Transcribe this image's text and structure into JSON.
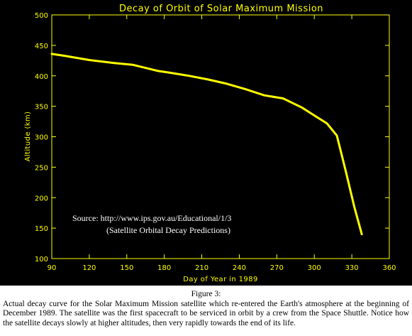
{
  "chart_data": {
    "type": "line",
    "title": "Decay of Orbit of Solar Maximum Mission",
    "xlabel": "Day of Year in 1989",
    "ylabel": "Altitude (km)",
    "xlim": [
      90,
      360
    ],
    "ylim": [
      100,
      500
    ],
    "xticks": [
      90,
      120,
      150,
      180,
      210,
      240,
      270,
      300,
      330,
      360
    ],
    "yticks": [
      100,
      150,
      200,
      250,
      300,
      350,
      400,
      450,
      500
    ],
    "grid": false,
    "background": "#000000",
    "axis_color": "#ffff00",
    "series_color": "#ffff00",
    "series": [
      {
        "x": [
          90,
          100,
          120,
          140,
          155,
          165,
          175,
          185,
          200,
          215,
          230,
          245,
          260,
          275,
          290,
          300,
          310,
          318,
          325,
          332,
          338
        ],
        "y": [
          436,
          433,
          426,
          421,
          418,
          413,
          408,
          405,
          400,
          394,
          387,
          378,
          368,
          363,
          348,
          335,
          322,
          302,
          245,
          185,
          140
        ]
      }
    ],
    "annotations": [
      "Source:   http://www.ips.gov.au/Educational/1/3",
      "(Satellite Orbital Decay Predictions)"
    ]
  },
  "caption": {
    "title": "Figure 3:",
    "body": "Actual decay curve for the Solar Maximum Mission satellite which re-entered the Earth's atmosphere at the beginning of December 1989. The satellite was the first spacecraft to be serviced in orbit by a crew from the Space Shuttle. Notice how the satellite decays slowly at higher altitudes, then very rapidly towards the end of its life."
  }
}
